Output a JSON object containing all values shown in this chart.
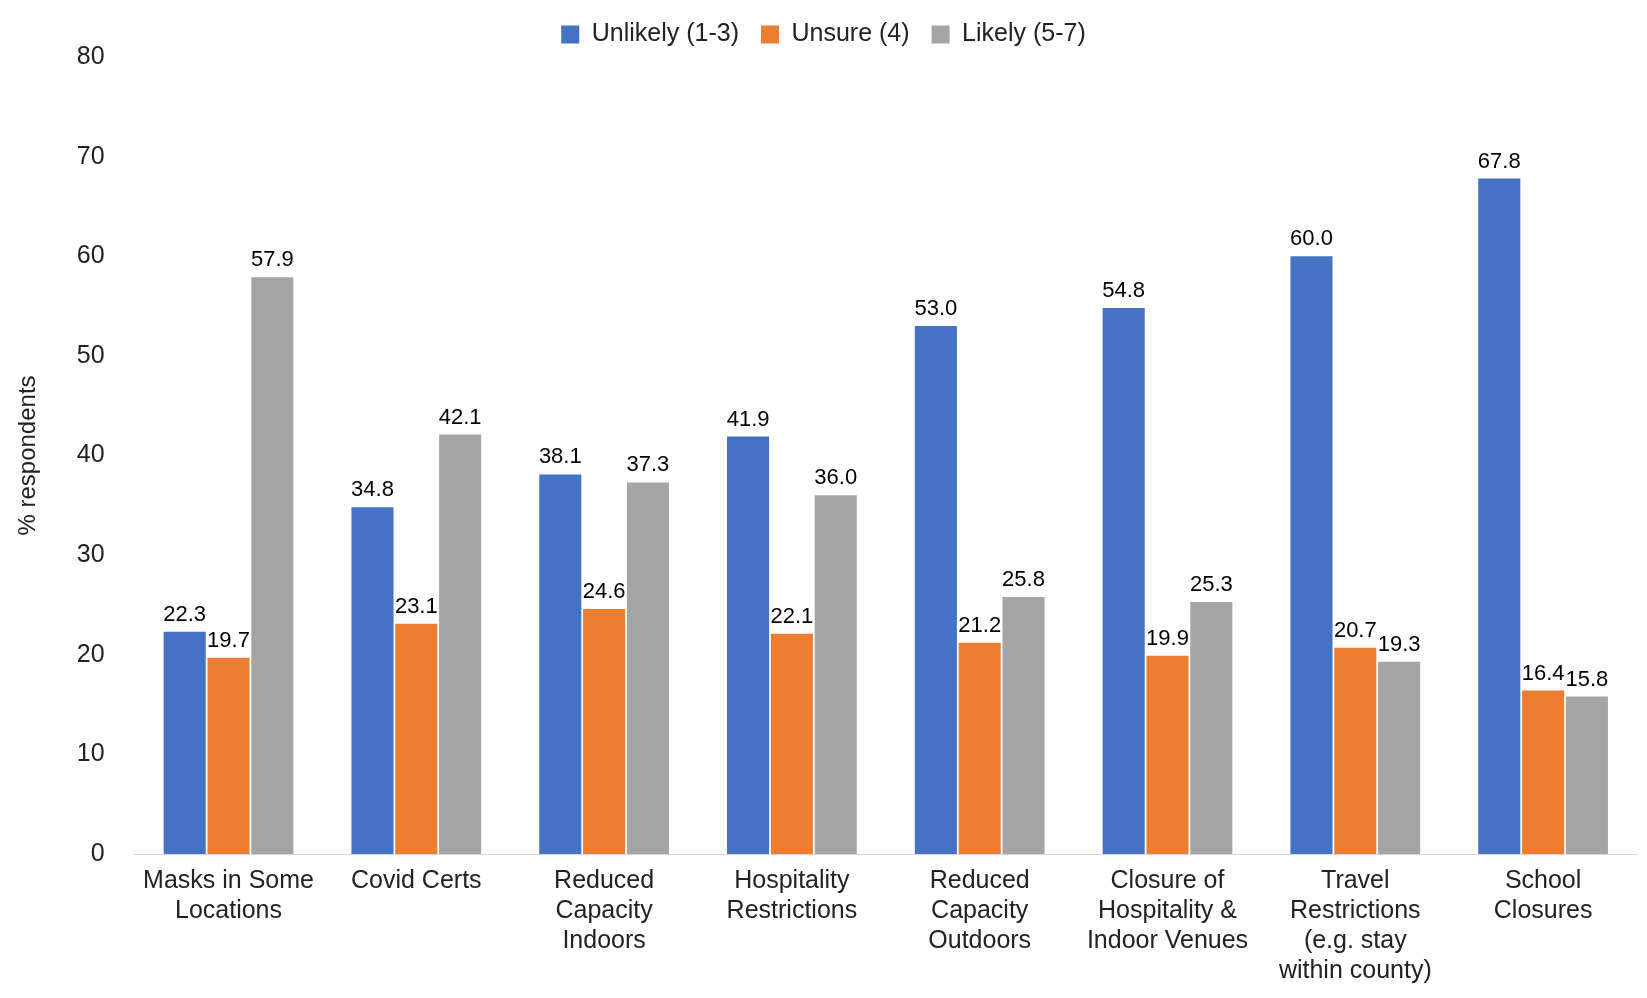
{
  "chart_data": {
    "type": "bar",
    "ylabel": "% respondents",
    "categories": [
      "Masks in Some Locations",
      "Covid Certs",
      "Reduced Capacity Indoors",
      "Hospitality Restrictions",
      "Reduced Capacity Outdoors",
      "Closure of Hospitality & Indoor Venues",
      "Travel Restrictions (e.g. stay within county)",
      "School Closures"
    ],
    "series": [
      {
        "name": "Unlikely (1-3)",
        "color": "#4472c4",
        "values": [
          22.3,
          34.8,
          38.1,
          41.9,
          53,
          54.8,
          60,
          67.8
        ],
        "value_labels": [
          "22.3",
          "34.8",
          "38.1",
          "41.9",
          "53.0",
          "54.8",
          "60.0",
          "67.8"
        ]
      },
      {
        "name": "Unsure (4)",
        "color": "#ed7d31",
        "values": [
          19.7,
          23.1,
          24.6,
          22.1,
          21.2,
          19.9,
          20.7,
          16.4
        ],
        "value_labels": [
          "19.7",
          "23.1",
          "24.6",
          "22.1",
          "21.2",
          "19.9",
          "20.7",
          "16.4"
        ]
      },
      {
        "name": "Likely (5-7)",
        "color": "#a5a5a5",
        "values": [
          57.9,
          42.1,
          37.3,
          36,
          25.8,
          25.3,
          19.3,
          15.8
        ],
        "value_labels": [
          "57.9",
          "42.1",
          "37.3",
          "36.0",
          "25.8",
          "25.3",
          "19.3",
          "15.8"
        ]
      }
    ],
    "ylim": [
      0,
      80
    ],
    "yticks": [
      0,
      10,
      20,
      30,
      40,
      50,
      60,
      70,
      80
    ],
    "grid": false,
    "legend": "top"
  }
}
